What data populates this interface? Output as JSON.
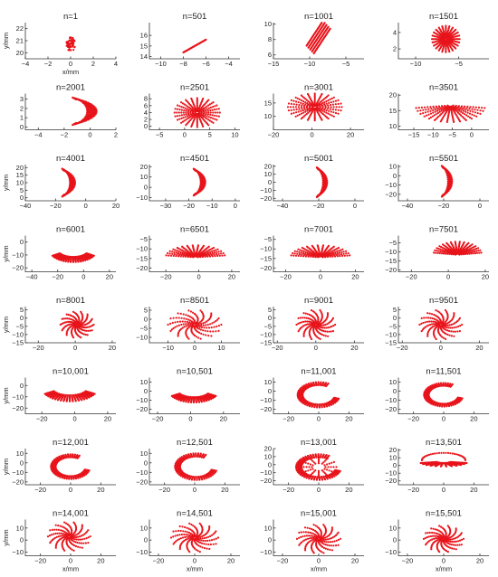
{
  "figure": {
    "layout": "8 rows x 4 columns of small scatter panels",
    "marker_color": "#e8141b",
    "axis_color": "#333333"
  },
  "chart_data": [
    {
      "type": "scatter",
      "title": "n=1",
      "xlabel": "x/mm",
      "ylabel": "y/mm",
      "xlim": [
        -4,
        4
      ],
      "ylim": [
        19.5,
        22.5
      ],
      "xticks": [
        -4,
        -2,
        0,
        2,
        4
      ],
      "yticks": [
        20,
        21,
        22
      ],
      "pattern": "single-dot",
      "center": [
        0,
        20.7
      ],
      "spread": [
        0.4,
        0.6
      ]
    },
    {
      "type": "scatter",
      "title": "n=501",
      "xlabel": "",
      "ylabel": "",
      "xlim": [
        -11,
        -3
      ],
      "ylim": [
        13.8,
        17.2
      ],
      "xticks": [
        -10,
        -8,
        -6,
        -4
      ],
      "yticks": [
        14,
        15,
        16
      ],
      "pattern": "line",
      "center": [
        -7,
        15
      ],
      "spread": [
        1.0,
        0.6
      ]
    },
    {
      "type": "scatter",
      "title": "n=1001",
      "xlabel": "",
      "ylabel": "",
      "xlim": [
        -15,
        -2.5
      ],
      "ylim": [
        5.5,
        10.2
      ],
      "xticks": [
        -15,
        -10,
        -5
      ],
      "yticks": [
        6,
        8,
        10
      ],
      "pattern": "line-thick",
      "center": [
        -8.8,
        8.3
      ],
      "spread": [
        1.6,
        1.6
      ]
    },
    {
      "type": "scatter",
      "title": "n=1501",
      "xlabel": "",
      "ylabel": "",
      "xlim": [
        -12,
        -1.5
      ],
      "ylim": [
        0.8,
        5.2
      ],
      "xticks": [
        -10,
        -5
      ],
      "yticks": [
        2,
        4
      ],
      "pattern": "star",
      "center": [
        -6.5,
        3.2
      ],
      "spread": [
        1.6,
        1.6
      ]
    },
    {
      "type": "scatter",
      "title": "n=2001",
      "xlabel": "",
      "ylabel": "",
      "xlim": [
        -5,
        2
      ],
      "ylim": [
        -0.3,
        3.6
      ],
      "xticks": [
        -4,
        -2,
        0,
        2
      ],
      "yticks": [
        0,
        1,
        2,
        3
      ],
      "pattern": "arc-bundle",
      "center": [
        -1,
        1.7
      ],
      "spread": [
        2.6,
        1.6
      ]
    },
    {
      "type": "scatter",
      "title": "n=2501",
      "xlabel": "",
      "ylabel": "",
      "xlim": [
        -7,
        11
      ],
      "ylim": [
        -1,
        9.5
      ],
      "xticks": [
        -5,
        0,
        5,
        10
      ],
      "yticks": [
        0,
        2,
        4,
        6,
        8
      ],
      "pattern": "star",
      "center": [
        2.5,
        4
      ],
      "spread": [
        4.5,
        4.2
      ]
    },
    {
      "type": "scatter",
      "title": "n=3001",
      "xlabel": "",
      "ylabel": "",
      "xlim": [
        -20,
        27
      ],
      "ylim": [
        5,
        18.5
      ],
      "xticks": [
        -20,
        0,
        20
      ],
      "yticks": [
        10,
        15
      ],
      "pattern": "star-wide",
      "center": [
        1.5,
        13.5
      ],
      "spread": [
        14,
        5
      ]
    },
    {
      "type": "scatter",
      "title": "n=3501",
      "xlabel": "",
      "ylabel": "",
      "xlim": [
        -19,
        4.5
      ],
      "ylim": [
        8.8,
        20.5
      ],
      "xticks": [
        -15,
        -10,
        -5,
        0
      ],
      "yticks": [
        10,
        15,
        20
      ],
      "pattern": "fan-wide",
      "center": [
        -5.5,
        15.5
      ],
      "spread": [
        9,
        6
      ]
    },
    {
      "type": "scatter",
      "title": "n=4001",
      "xlabel": "",
      "ylabel": "y/mm",
      "xlim": [
        -40,
        20
      ],
      "ylim": [
        -2,
        22
      ],
      "xticks": [
        -40,
        -20,
        0,
        20
      ],
      "yticks": [
        0,
        5,
        10,
        15,
        20
      ],
      "pattern": "arc-bundle",
      "center": [
        -14,
        10
      ],
      "spread": [
        12,
        10
      ]
    },
    {
      "type": "scatter",
      "title": "n=4501",
      "xlabel": "",
      "ylabel": "",
      "xlim": [
        -37,
        2
      ],
      "ylim": [
        -13,
        22
      ],
      "xticks": [
        -30,
        -20,
        -10,
        0
      ],
      "yticks": [
        -10,
        0,
        10,
        20
      ],
      "pattern": "arc-tall",
      "center": [
        -17,
        5
      ],
      "spread": [
        7,
        14
      ]
    },
    {
      "type": "scatter",
      "title": "n=5001",
      "xlabel": "",
      "ylabel": "",
      "xlim": [
        -45,
        5
      ],
      "ylim": [
        -23,
        22
      ],
      "xticks": [
        -40,
        -20,
        0
      ],
      "yticks": [
        -20,
        -10,
        0,
        10,
        20
      ],
      "pattern": "arc-tall",
      "center": [
        -20,
        0
      ],
      "spread": [
        8,
        20
      ]
    },
    {
      "type": "scatter",
      "title": "n=5501",
      "xlabel": "",
      "ylabel": "",
      "xlim": [
        -45,
        5
      ],
      "ylim": [
        -27,
        12
      ],
      "xticks": [
        -40,
        -20,
        0
      ],
      "yticks": [
        -20,
        -10,
        0,
        10
      ],
      "pattern": "arc-tall",
      "center": [
        -20,
        -6
      ],
      "spread": [
        8,
        18
      ]
    },
    {
      "type": "scatter",
      "title": "n=6001",
      "xlabel": "",
      "ylabel": "y/mm",
      "xlim": [
        -45,
        25
      ],
      "ylim": [
        -23,
        5
      ],
      "xticks": [
        -40,
        -20,
        0,
        20
      ],
      "yticks": [
        -20,
        -10,
        0
      ],
      "pattern": "arc-low",
      "center": [
        -8,
        -11
      ],
      "spread": [
        18,
        9
      ]
    },
    {
      "type": "scatter",
      "title": "n=6501",
      "xlabel": "",
      "ylabel": "",
      "xlim": [
        -30,
        25
      ],
      "ylim": [
        -22,
        -3
      ],
      "xticks": [
        -20,
        0,
        20
      ],
      "yticks": [
        -20,
        -15,
        -10,
        -5
      ],
      "pattern": "fan-up",
      "center": [
        -2,
        -13
      ],
      "spread": [
        18,
        7
      ]
    },
    {
      "type": "scatter",
      "title": "n=7001",
      "xlabel": "",
      "ylabel": "",
      "xlim": [
        -27,
        25
      ],
      "ylim": [
        -22,
        -3
      ],
      "xticks": [
        -20,
        0,
        20
      ],
      "yticks": [
        -20,
        -15,
        -10,
        -5
      ],
      "pattern": "fan-up",
      "center": [
        0,
        -13
      ],
      "spread": [
        17,
        7
      ]
    },
    {
      "type": "scatter",
      "title": "n=7501",
      "xlabel": "",
      "ylabel": "",
      "xlim": [
        -27,
        22
      ],
      "ylim": [
        -21,
        -1
      ],
      "xticks": [
        -20,
        0,
        20
      ],
      "yticks": [
        -20,
        -15,
        -10,
        -5
      ],
      "pattern": "fan-up",
      "center": [
        5,
        -10
      ],
      "spread": [
        13,
        8
      ]
    },
    {
      "type": "scatter",
      "title": "n=8001",
      "xlabel": "",
      "ylabel": "y/mm",
      "xlim": [
        -27,
        22
      ],
      "ylim": [
        -15,
        7
      ],
      "xticks": [
        -20,
        0,
        20
      ],
      "yticks": [
        -15,
        -10,
        -5,
        0,
        5
      ],
      "pattern": "spiral-star",
      "center": [
        1,
        -4
      ],
      "spread": [
        9,
        8
      ]
    },
    {
      "type": "scatter",
      "title": "n=8501",
      "xlabel": "",
      "ylabel": "",
      "xlim": [
        -17,
        17
      ],
      "ylim": [
        -13,
        7
      ],
      "xticks": [
        -10,
        0,
        10
      ],
      "yticks": [
        -10,
        -5,
        0,
        5
      ],
      "pattern": "spiral-star",
      "center": [
        0,
        -3
      ],
      "spread": [
        10,
        8
      ]
    },
    {
      "type": "scatter",
      "title": "n=9001",
      "xlabel": "",
      "ylabel": "",
      "xlim": [
        -22,
        25
      ],
      "ylim": [
        -15,
        7
      ],
      "xticks": [
        -20,
        0,
        20
      ],
      "yticks": [
        -15,
        -10,
        -5,
        0,
        5
      ],
      "pattern": "spiral-star",
      "center": [
        0,
        -4
      ],
      "spread": [
        10,
        9
      ]
    },
    {
      "type": "scatter",
      "title": "n=9501",
      "xlabel": "",
      "ylabel": "",
      "xlim": [
        -22,
        25
      ],
      "ylim": [
        -15,
        7
      ],
      "xticks": [
        -20,
        0,
        20
      ],
      "yticks": [
        -15,
        -10,
        -5,
        0,
        5
      ],
      "pattern": "spiral-star",
      "center": [
        0,
        -4
      ],
      "spread": [
        11,
        9
      ]
    },
    {
      "type": "scatter",
      "title": "n=10,001",
      "xlabel": "",
      "ylabel": "y/mm",
      "xlim": [
        -30,
        25
      ],
      "ylim": [
        -25,
        7
      ],
      "xticks": [
        -20,
        0,
        20
      ],
      "yticks": [
        -20,
        -10,
        0
      ],
      "pattern": "cup",
      "center": [
        -3,
        -8
      ],
      "spread": [
        17,
        12
      ]
    },
    {
      "type": "scatter",
      "title": "n=10,501",
      "xlabel": "",
      "ylabel": "",
      "xlim": [
        -25,
        30
      ],
      "ylim": [
        -25,
        15
      ],
      "xticks": [
        -20,
        0,
        20
      ],
      "yticks": [
        -20,
        -10,
        0,
        10
      ],
      "pattern": "cup",
      "center": [
        2,
        -6
      ],
      "spread": [
        15,
        13
      ]
    },
    {
      "type": "scatter",
      "title": "n=11,001",
      "xlabel": "",
      "ylabel": "",
      "xlim": [
        -30,
        30
      ],
      "ylim": [
        -25,
        15
      ],
      "xticks": [
        -20,
        0,
        20
      ],
      "yticks": [
        -20,
        -10,
        0,
        10
      ],
      "pattern": "ring-open",
      "center": [
        0,
        -4
      ],
      "spread": [
        14,
        14
      ]
    },
    {
      "type": "scatter",
      "title": "n=11,501",
      "xlabel": "",
      "ylabel": "",
      "xlim": [
        -30,
        30
      ],
      "ylim": [
        -25,
        15
      ],
      "xticks": [
        -20,
        0,
        20
      ],
      "yticks": [
        -20,
        -10,
        0,
        10
      ],
      "pattern": "ring-open",
      "center": [
        0,
        -4
      ],
      "spread": [
        13,
        13
      ]
    },
    {
      "type": "scatter",
      "title": "n=12,001",
      "xlabel": "",
      "ylabel": "y/mm",
      "xlim": [
        -30,
        30
      ],
      "ylim": [
        -23,
        15
      ],
      "xticks": [
        -20,
        0,
        20
      ],
      "yticks": [
        -20,
        -10,
        0,
        10
      ],
      "pattern": "ring-open",
      "center": [
        0,
        -4
      ],
      "spread": [
        13,
        13
      ]
    },
    {
      "type": "scatter",
      "title": "n=12,501",
      "xlabel": "",
      "ylabel": "",
      "xlim": [
        -30,
        30
      ],
      "ylim": [
        -23,
        15
      ],
      "xticks": [
        -20,
        0,
        20
      ],
      "yticks": [
        -20,
        -10,
        0,
        10
      ],
      "pattern": "ring-open",
      "center": [
        1,
        -4
      ],
      "spread": [
        14,
        14
      ]
    },
    {
      "type": "scatter",
      "title": "n=13,001",
      "xlabel": "",
      "ylabel": "",
      "xlim": [
        -30,
        30
      ],
      "ylim": [
        -25,
        20
      ],
      "xticks": [
        -20,
        0,
        20
      ],
      "yticks": [
        -20,
        -10,
        0,
        10,
        20
      ],
      "pattern": "ring-hair",
      "center": [
        0,
        -3
      ],
      "spread": [
        15,
        16
      ]
    },
    {
      "type": "scatter",
      "title": "n=13,501",
      "xlabel": "",
      "ylabel": "",
      "xlim": [
        -30,
        30
      ],
      "ylim": [
        -25,
        22
      ],
      "xticks": [
        -20,
        0,
        20
      ],
      "yticks": [
        -20,
        -10,
        0,
        10,
        20
      ],
      "pattern": "cap",
      "center": [
        0,
        2
      ],
      "spread": [
        16,
        16
      ]
    },
    {
      "type": "scatter",
      "title": "n=14,001",
      "xlabel": "x/mm",
      "ylabel": "y/mm",
      "xlim": [
        -30,
        30
      ],
      "ylim": [
        -13,
        17
      ],
      "xticks": [
        -20,
        0,
        20
      ],
      "yticks": [
        -10,
        0,
        10
      ],
      "pattern": "spiral-star",
      "center": [
        -1,
        3
      ],
      "spread": [
        14,
        12
      ]
    },
    {
      "type": "scatter",
      "title": "n=14,501",
      "xlabel": "x/mm",
      "ylabel": "",
      "xlim": [
        -25,
        25
      ],
      "ylim": [
        -13,
        17
      ],
      "xticks": [
        -20,
        0,
        20
      ],
      "yticks": [
        -10,
        0,
        10
      ],
      "pattern": "spiral-star",
      "center": [
        0,
        2
      ],
      "spread": [
        13,
        12
      ]
    },
    {
      "type": "scatter",
      "title": "n=15,001",
      "xlabel": "x/mm",
      "ylabel": "",
      "xlim": [
        -25,
        25
      ],
      "ylim": [
        -13,
        17
      ],
      "xticks": [
        -20,
        0,
        20
      ],
      "yticks": [
        -10,
        0,
        10
      ],
      "pattern": "spiral-star",
      "center": [
        0,
        1
      ],
      "spread": [
        12,
        12
      ]
    },
    {
      "type": "scatter",
      "title": "n=15,501",
      "xlabel": "x/mm",
      "ylabel": "",
      "xlim": [
        -25,
        25
      ],
      "ylim": [
        -13,
        17
      ],
      "xticks": [
        -20,
        0,
        20
      ],
      "yticks": [
        -10,
        0,
        10
      ],
      "pattern": "spiral-star",
      "center": [
        0,
        1
      ],
      "spread": [
        11,
        11
      ]
    }
  ]
}
